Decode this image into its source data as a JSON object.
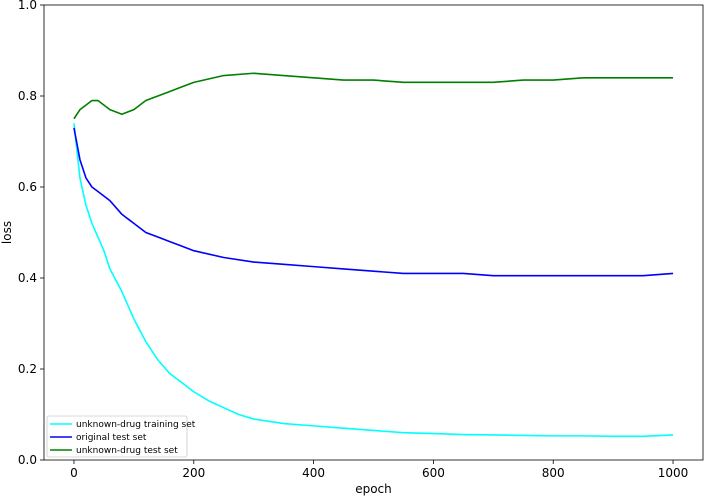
{
  "chart_data": {
    "type": "line",
    "xlabel": "epoch",
    "ylabel": "loss",
    "xlim": [
      -50,
      1050
    ],
    "ylim": [
      0.0,
      1.0
    ],
    "xticks": [
      0,
      200,
      400,
      600,
      800,
      1000
    ],
    "yticks": [
      0.0,
      0.2,
      0.4,
      0.6,
      0.8,
      1.0
    ],
    "xtick_labels": [
      "0",
      "200",
      "400",
      "600",
      "800",
      "1000"
    ],
    "ytick_labels": [
      "0.0",
      "0.2",
      "0.4",
      "0.6",
      "0.8",
      "1.0"
    ],
    "grid": false,
    "legend_position": "lower-left",
    "series": [
      {
        "name": "unknown-drug training set",
        "color": "#00ffff",
        "x": [
          0,
          10,
          20,
          30,
          40,
          50,
          60,
          80,
          100,
          120,
          140,
          160,
          180,
          200,
          225,
          250,
          275,
          300,
          350,
          400,
          450,
          500,
          550,
          600,
          650,
          700,
          750,
          800,
          850,
          900,
          950,
          1000
        ],
        "values": [
          0.74,
          0.62,
          0.56,
          0.52,
          0.49,
          0.46,
          0.42,
          0.37,
          0.31,
          0.26,
          0.22,
          0.19,
          0.17,
          0.15,
          0.13,
          0.115,
          0.1,
          0.09,
          0.08,
          0.075,
          0.07,
          0.065,
          0.06,
          0.058,
          0.056,
          0.055,
          0.054,
          0.053,
          0.053,
          0.052,
          0.052,
          0.055
        ]
      },
      {
        "name": "original test set",
        "color": "#0000ff",
        "x": [
          0,
          10,
          20,
          30,
          40,
          60,
          80,
          100,
          120,
          140,
          160,
          180,
          200,
          250,
          300,
          350,
          400,
          450,
          500,
          550,
          600,
          650,
          700,
          750,
          800,
          850,
          900,
          950,
          1000
        ],
        "values": [
          0.73,
          0.66,
          0.62,
          0.6,
          0.59,
          0.57,
          0.54,
          0.52,
          0.5,
          0.49,
          0.48,
          0.47,
          0.46,
          0.445,
          0.435,
          0.43,
          0.425,
          0.42,
          0.415,
          0.41,
          0.41,
          0.41,
          0.405,
          0.405,
          0.405,
          0.405,
          0.405,
          0.405,
          0.41
        ]
      },
      {
        "name": "unknown-drug test set",
        "color": "#008000",
        "x": [
          0,
          10,
          20,
          30,
          40,
          60,
          80,
          100,
          120,
          140,
          160,
          180,
          200,
          250,
          300,
          350,
          400,
          450,
          500,
          550,
          600,
          650,
          700,
          750,
          800,
          850,
          900,
          950,
          1000
        ],
        "values": [
          0.75,
          0.77,
          0.78,
          0.79,
          0.79,
          0.77,
          0.76,
          0.77,
          0.79,
          0.8,
          0.81,
          0.82,
          0.83,
          0.845,
          0.85,
          0.845,
          0.84,
          0.835,
          0.835,
          0.83,
          0.83,
          0.83,
          0.83,
          0.835,
          0.835,
          0.84,
          0.84,
          0.84,
          0.84
        ]
      }
    ]
  }
}
